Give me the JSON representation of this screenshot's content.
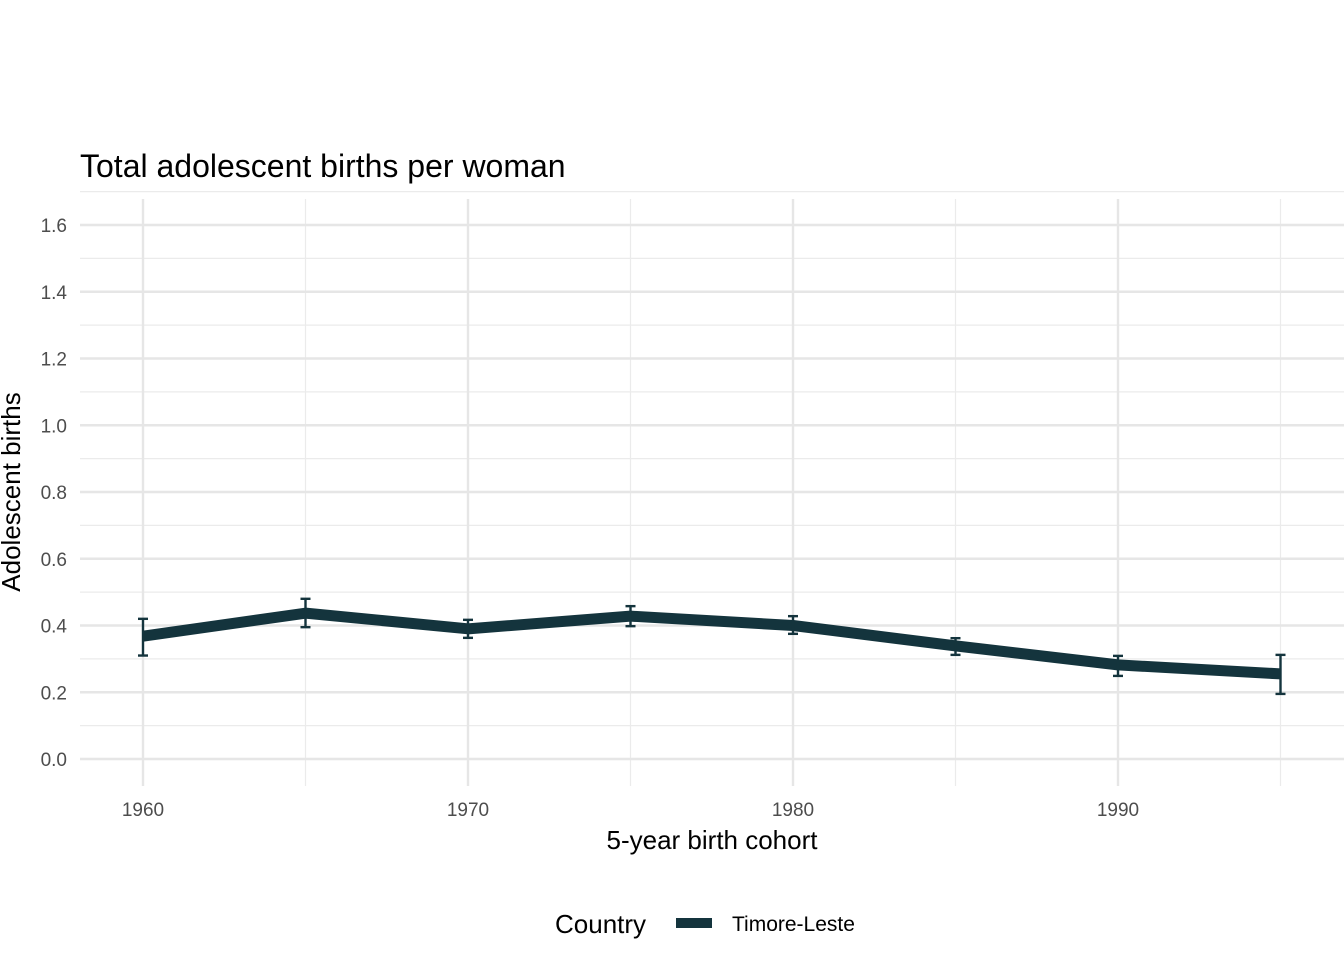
{
  "chart_data": {
    "type": "line",
    "title": "Total adolescent births per woman",
    "xlabel": "5-year birth cohort",
    "ylabel": "Adolescent births",
    "xlim": [
      1958,
      1997
    ],
    "ylim": [
      -0.07,
      1.68
    ],
    "x_ticks": [
      1960,
      1970,
      1980,
      1990
    ],
    "y_ticks": [
      0.0,
      0.2,
      0.4,
      0.6,
      0.8,
      1.0,
      1.2,
      1.4,
      1.6
    ],
    "y_tick_labels": [
      "0.0",
      "0.2",
      "0.4",
      "0.6",
      "0.8",
      "1.0",
      "1.2",
      "1.4",
      "1.6"
    ],
    "grid": true,
    "legend": {
      "title": "Country",
      "position": "bottom"
    },
    "series": [
      {
        "name": "Timore-Leste",
        "color": "#14343d",
        "x": [
          1960,
          1965,
          1970,
          1975,
          1980,
          1985,
          1990,
          1995
        ],
        "y": [
          0.368,
          0.437,
          0.39,
          0.428,
          0.4,
          0.339,
          0.282,
          0.255
        ],
        "y_low": [
          0.31,
          0.395,
          0.363,
          0.398,
          0.375,
          0.312,
          0.249,
          0.195
        ],
        "y_high": [
          0.42,
          0.48,
          0.417,
          0.458,
          0.428,
          0.362,
          0.309,
          0.312
        ]
      }
    ]
  }
}
